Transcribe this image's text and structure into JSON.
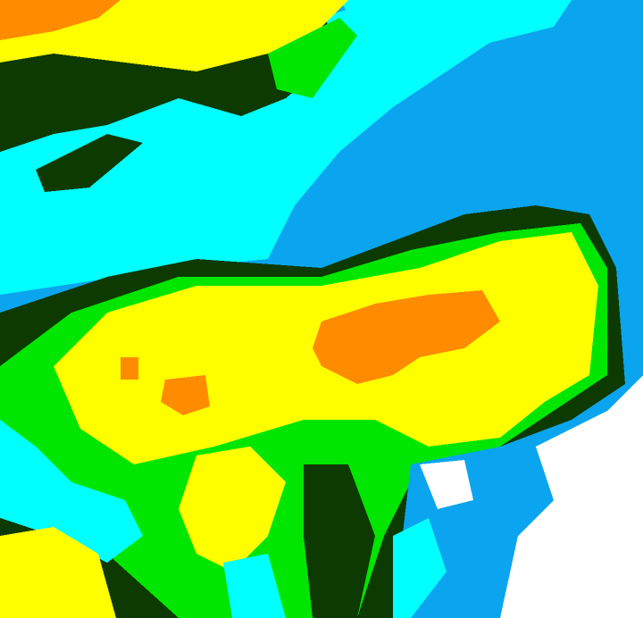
{
  "image": {
    "kind": "false-color classified satellite imagery",
    "palette": {
      "dark_green": "#0d3a00",
      "green": "#00e600",
      "yellow": "#ffff00",
      "orange": "#ff8c00",
      "cyan": "#00ffff",
      "blue": "#0aa5ee",
      "white": "#ffffff"
    }
  }
}
